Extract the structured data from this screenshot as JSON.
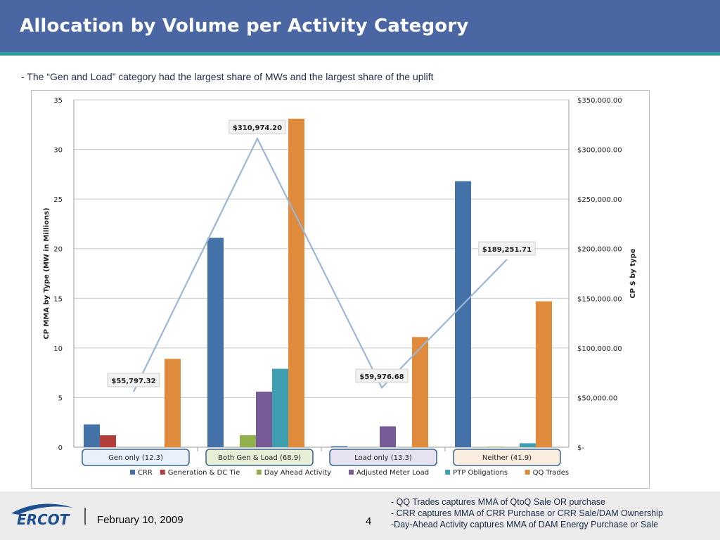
{
  "slide": {
    "title": "Allocation by Volume per Activity Category",
    "subtitle": "- The “Gen and Load” category had the largest share of MWs and the largest share of the uplift",
    "footer_date": "February 10, 2009",
    "page_number": "4",
    "logo_text": "ERCOT",
    "notes": [
      "- QQ Trades captures MMA of QtoQ Sale OR purchase",
      "- CRR captures MMA of CRR Purchase or CRR Sale/DAM Ownership",
      "-Day-Ahead Activity captures MMA of DAM Energy Purchase or Sale"
    ],
    "colors": {
      "header": "#4a67a3",
      "stripe": "#2a9aa0"
    }
  },
  "chart_data": {
    "type": "bar",
    "categories": [
      "Gen only (12.3)",
      "Both Gen & Load (68.9)",
      "Load only (13.3)",
      "Neither (41.9)"
    ],
    "category_box_colors": [
      "#e8f0fa",
      "#e7efd6",
      "#e6e2f0",
      "#fbeee0"
    ],
    "series": [
      {
        "name": "CRR",
        "color": "#4472a8",
        "values": [
          2.3,
          21.1,
          0.1,
          26.8
        ]
      },
      {
        "name": "Generation & DC Tie",
        "color": "#b33d3a",
        "values": [
          1.2,
          0,
          0,
          0
        ]
      },
      {
        "name": "Day Ahead Activity",
        "color": "#8fb04a",
        "values": [
          0,
          1.2,
          0,
          0.05
        ]
      },
      {
        "name": "Adjusted Meter Load",
        "color": "#775b96",
        "values": [
          0,
          5.6,
          2.1,
          0
        ]
      },
      {
        "name": "PTP Obligations",
        "color": "#3f9fb0",
        "values": [
          0,
          7.9,
          0,
          0.4
        ]
      },
      {
        "name": "QQ Trades",
        "color": "#e08a3c",
        "values": [
          8.9,
          33.1,
          11.1,
          14.7
        ]
      }
    ],
    "line": {
      "name": "CP $ by type",
      "values": [
        55797.32,
        310974.2,
        59976.68,
        189251.71
      ],
      "labels": [
        "$55,797.32",
        "$310,974.20",
        "$59,976.68",
        "$189,251.71"
      ],
      "color": "#9ab6d8"
    },
    "ylabel": "CP MMA by Type (MW in Millions)",
    "y2label": "CP $ by type",
    "ylim": [
      0,
      35
    ],
    "y2lim": [
      0,
      350000
    ],
    "yticks": [
      "0",
      "5",
      "10",
      "15",
      "20",
      "25",
      "30",
      "35"
    ],
    "y2ticks": [
      "$-",
      "$50,000.00",
      "$100,000.00",
      "$150,000.00",
      "$200,000.00",
      "$250,000.00",
      "$300,000.00",
      "$350,000.00"
    ],
    "grid": true,
    "legend_position": "bottom"
  }
}
